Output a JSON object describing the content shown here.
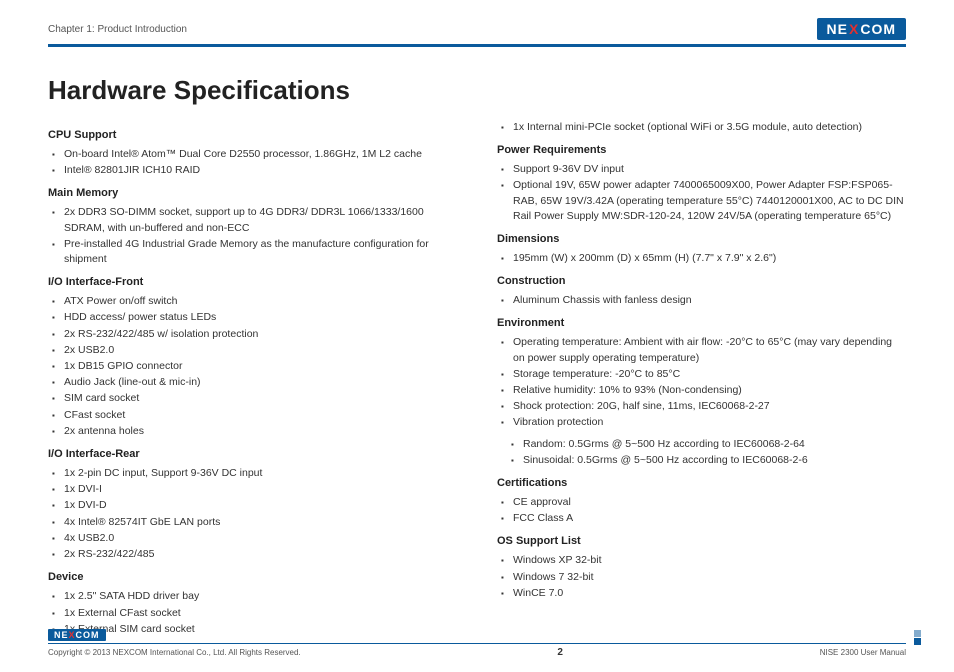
{
  "header": {
    "chapter": "Chapter 1: Product Introduction",
    "brand_left": "NE",
    "brand_x": "X",
    "brand_right": "COM"
  },
  "title": "Hardware Specifications",
  "left": {
    "s1_title": "CPU Support",
    "s1_i1": "On-board Intel® Atom™ Dual Core D2550 processor, 1.86GHz, 1M L2 cache",
    "s1_i2": "Intel® 82801JIR ICH10 RAID",
    "s2_title": "Main Memory",
    "s2_i1": "2x DDR3 SO-DIMM socket, support up to 4G DDR3/ DDR3L 1066/1333/1600 SDRAM, with un-buffered and non-ECC",
    "s2_i2": "Pre-installed 4G Industrial Grade Memory as the manufacture configuration for shipment",
    "s3_title": "I/O Interface-Front",
    "s3_i1": "ATX Power on/off switch",
    "s3_i2": "HDD access/ power status LEDs",
    "s3_i3": "2x RS-232/422/485 w/ isolation protection",
    "s3_i4": "2x USB2.0",
    "s3_i5": "1x DB15 GPIO connector",
    "s3_i6": "Audio Jack (line-out & mic-in)",
    "s3_i7": "SIM card socket",
    "s3_i8": "CFast socket",
    "s3_i9": "2x antenna holes",
    "s4_title": "I/O Interface-Rear",
    "s4_i1": "1x 2-pin DC input, Support 9-36V DC input",
    "s4_i2": "1x DVI-I",
    "s4_i3": "1x DVI-D",
    "s4_i4": "4x Intel® 82574IT GbE LAN ports",
    "s4_i5": "4x USB2.0",
    "s4_i6": "2x RS-232/422/485",
    "s5_title": "Device",
    "s5_i1": "1x 2.5\" SATA HDD driver bay",
    "s5_i2": "1x External CFast socket",
    "s5_i3": "1x External SIM card socket"
  },
  "right": {
    "s0_i1": "1x Internal mini-PCIe socket (optional WiFi or 3.5G module, auto detection)",
    "s1_title": "Power Requirements",
    "s1_i1": "Support 9-36V DV input",
    "s1_i2": "Optional 19V, 65W power adapter 7400065009X00, Power Adapter FSP:FSP065-RAB, 65W 19V/3.42A (operating temperature 55°C) 7440120001X00, AC to DC DIN Rail Power Supply MW:SDR-120-24, 120W 24V/5A (operating temperature 65°C)",
    "s2_title": "Dimensions",
    "s2_i1": "195mm (W) x 200mm (D) x 65mm (H) (7.7\" x 7.9\" x 2.6\")",
    "s3_title": "Construction",
    "s3_i1": "Aluminum Chassis with fanless design",
    "s4_title": "Environment",
    "s4_i1": "Operating temperature: Ambient with air flow: -20°C to 65°C (may vary depending on power supply operating temperature)",
    "s4_i2": "Storage temperature: -20°C to 85°C",
    "s4_i3": "Relative humidity: 10% to 93% (Non-condensing)",
    "s4_i4": "Shock protection: 20G, half sine, 11ms, IEC60068-2-27",
    "s4_i5": "Vibration protection",
    "s4_i5a": "Random: 0.5Grms @ 5~500 Hz according to IEC60068-2-64",
    "s4_i5b": "Sinusoidal: 0.5Grms @ 5~500 Hz according to IEC60068-2-6",
    "s5_title": "Certifications",
    "s5_i1": "CE approval",
    "s5_i2": "FCC Class A",
    "s6_title": "OS Support List",
    "s6_i1": "Windows XP 32-bit",
    "s6_i2": "Windows 7 32-bit",
    "s6_i3": "WinCE 7.0"
  },
  "footer": {
    "copyright": "Copyright © 2013 NEXCOM International Co., Ltd. All Rights Reserved.",
    "page": "2",
    "doc": "NISE 2300 User Manual"
  }
}
